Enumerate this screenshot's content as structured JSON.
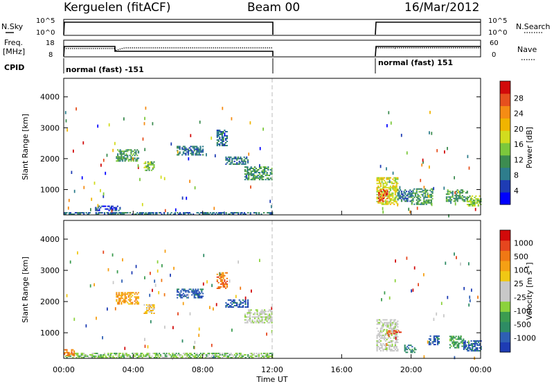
{
  "header": {
    "station": "Kerguelen (fitACF)",
    "beam": "Beam 00",
    "date": "16/Mar/2012"
  },
  "status_panels": {
    "left_labels": {
      "nsky": "N.Sky",
      "freq": "Freq.",
      "freq_unit": "[MHz]",
      "cpid": "CPID"
    },
    "right_labels": {
      "nsearch": "N.Search",
      "nave": "Nave"
    },
    "nsky_ticks": [
      "10^5",
      "10^0"
    ],
    "nsearch_ticks": [
      "10^5",
      "10^0"
    ],
    "freq_ticks": [
      "18",
      "8"
    ],
    "nave_ticks": [
      "60",
      "0"
    ],
    "cpid_segments": [
      {
        "label": "normal (fast) -151",
        "start_h": 0,
        "end_h": 12
      },
      {
        "label": "normal (fast) 151",
        "start_h": 18,
        "end_h": 24
      }
    ]
  },
  "chart_data": [
    {
      "type": "heatmap",
      "name": "power",
      "ylabel": "Slant Range [km]",
      "y_ticks": [
        "4000",
        "3000",
        "2000",
        "1000"
      ],
      "ylim": [
        180,
        4600
      ],
      "xlim": [
        0,
        24
      ],
      "colorbar": {
        "label": "Power [dB]",
        "ticks": [
          "28",
          "24",
          "20",
          "16",
          "12",
          "8",
          "4"
        ],
        "colors": [
          "#0000ff",
          "#1e3cb4",
          "#2e7d8c",
          "#3c8c50",
          "#7cc83c",
          "#d2dc1e",
          "#f0b400",
          "#f58c14",
          "#e6501e",
          "#d20a0a"
        ]
      },
      "regions": [
        {
          "t0": 0.0,
          "t1": 12.0,
          "r0": 180,
          "r1": 260,
          "level": 2
        },
        {
          "t0": 1.8,
          "t1": 3.2,
          "r0": 300,
          "r1": 450,
          "level": 1
        },
        {
          "t0": 3.0,
          "t1": 4.3,
          "r0": 1900,
          "r1": 2300,
          "level": 3
        },
        {
          "t0": 4.6,
          "t1": 5.2,
          "r0": 1600,
          "r1": 1900,
          "level": 4
        },
        {
          "t0": 6.5,
          "t1": 8.0,
          "r0": 2100,
          "r1": 2400,
          "level": 2
        },
        {
          "t0": 8.8,
          "t1": 9.4,
          "r0": 2400,
          "r1": 2900,
          "level": 2
        },
        {
          "t0": 9.3,
          "t1": 10.6,
          "r0": 1800,
          "r1": 2050,
          "level": 2
        },
        {
          "t0": 10.4,
          "t1": 12.0,
          "r0": 1300,
          "r1": 1750,
          "level": 3
        },
        {
          "t0": 18.0,
          "t1": 19.2,
          "r0": 500,
          "r1": 1400,
          "level": 5
        },
        {
          "t0": 18.1,
          "t1": 18.6,
          "r0": 600,
          "r1": 1000,
          "level": 8
        },
        {
          "t0": 19.2,
          "t1": 20.0,
          "r0": 600,
          "r1": 1000,
          "level": 2
        },
        {
          "t0": 20.0,
          "t1": 21.2,
          "r0": 500,
          "r1": 1000,
          "level": 3
        },
        {
          "t0": 22.0,
          "t1": 23.2,
          "r0": 600,
          "r1": 1000,
          "level": 3
        },
        {
          "t0": 23.2,
          "t1": 24.0,
          "r0": 450,
          "r1": 800,
          "level": 4
        }
      ]
    },
    {
      "type": "heatmap",
      "name": "velocity",
      "ylabel": "Slant Range [km]",
      "y_ticks": [
        "4000",
        "3000",
        "2000",
        "1000"
      ],
      "ylim": [
        180,
        4600
      ],
      "xlim": [
        0,
        24
      ],
      "x_ticks": [
        "00:00",
        "04:00",
        "08:00",
        "12:00",
        "16:00",
        "20:00",
        "00:00"
      ],
      "xlabel": "Time UT",
      "colorbar": {
        "label": "Velocity [m s",
        "label_sup": "-1",
        "label_end": "]",
        "ticks": [
          "1000",
          "500",
          "100",
          "25",
          "-25",
          "-100",
          "-500",
          "-1000"
        ],
        "colors": [
          "#1e3cb4",
          "#2e5fb4",
          "#2e8c64",
          "#3c9c50",
          "#8cd23c",
          "#c8c8c8",
          "#c8c8c8",
          "#f0c814",
          "#f5a014",
          "#f07814",
          "#e6461e",
          "#d20a0a"
        ]
      },
      "regions": [
        {
          "t0": 0.0,
          "t1": 12.0,
          "r0": 180,
          "r1": 320,
          "level": 4
        },
        {
          "t0": 0.0,
          "t1": 0.6,
          "r0": 250,
          "r1": 450,
          "level": 9
        },
        {
          "t0": 3.0,
          "t1": 4.3,
          "r0": 1900,
          "r1": 2300,
          "level": 8
        },
        {
          "t0": 4.6,
          "t1": 5.2,
          "r0": 1600,
          "r1": 1900,
          "level": 7
        },
        {
          "t0": 6.5,
          "t1": 8.0,
          "r0": 2100,
          "r1": 2400,
          "level": 1
        },
        {
          "t0": 8.8,
          "t1": 9.4,
          "r0": 2400,
          "r1": 2900,
          "level": 9
        },
        {
          "t0": 9.3,
          "t1": 10.6,
          "r0": 1800,
          "r1": 2050,
          "level": 1
        },
        {
          "t0": 10.4,
          "t1": 12.0,
          "r0": 1300,
          "r1": 1750,
          "level": 5
        },
        {
          "t0": 18.0,
          "t1": 19.2,
          "r0": 400,
          "r1": 1400,
          "level": 5
        },
        {
          "t0": 18.6,
          "t1": 19.4,
          "r0": 950,
          "r1": 1050,
          "level": 10
        },
        {
          "t0": 19.6,
          "t1": 20.3,
          "r0": 350,
          "r1": 600,
          "level": 2
        },
        {
          "t0": 21.0,
          "t1": 21.6,
          "r0": 600,
          "r1": 900,
          "level": 1
        },
        {
          "t0": 22.2,
          "t1": 23.0,
          "r0": 500,
          "r1": 900,
          "level": 3
        },
        {
          "t0": 23.0,
          "t1": 24.0,
          "r0": 400,
          "r1": 750,
          "level": 1
        }
      ]
    }
  ]
}
